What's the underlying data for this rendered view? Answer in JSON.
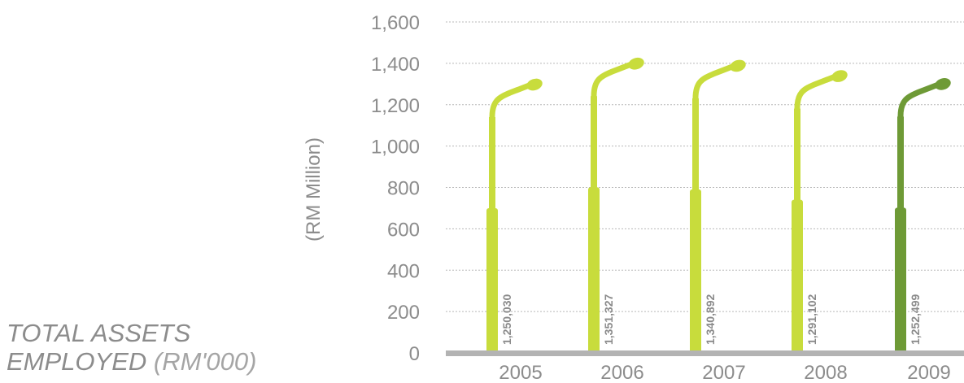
{
  "chart_data": {
    "type": "bar",
    "title_main_line1": "TOTAL ASSETS",
    "title_main_line2": "EMPLOYED",
    "title_unit": "(RM'000)",
    "ylabel": "(RM Million)",
    "categories": [
      "2005",
      "2006",
      "2007",
      "2008",
      "2009"
    ],
    "values": [
      1250030,
      1351327,
      1340892,
      1291102,
      1252499
    ],
    "value_labels": [
      "1,250,030",
      "1,351,327",
      "1,340,892",
      "1,291,102",
      "1,252,499"
    ],
    "ylim": [
      0,
      1600
    ],
    "yticks": [
      0,
      200,
      400,
      600,
      800,
      1000,
      1200,
      1400,
      1600
    ],
    "ytick_labels": [
      "0",
      "200",
      "400",
      "600",
      "800",
      "1,000",
      "1,200",
      "1,400",
      "1,600"
    ],
    "grid": true,
    "colors": {
      "bar": "#c8dc3c",
      "highlight_bar": "#6e9a36",
      "axis": "#b3b3b3",
      "text": "#8c8c8c"
    },
    "highlight_index": 4
  }
}
